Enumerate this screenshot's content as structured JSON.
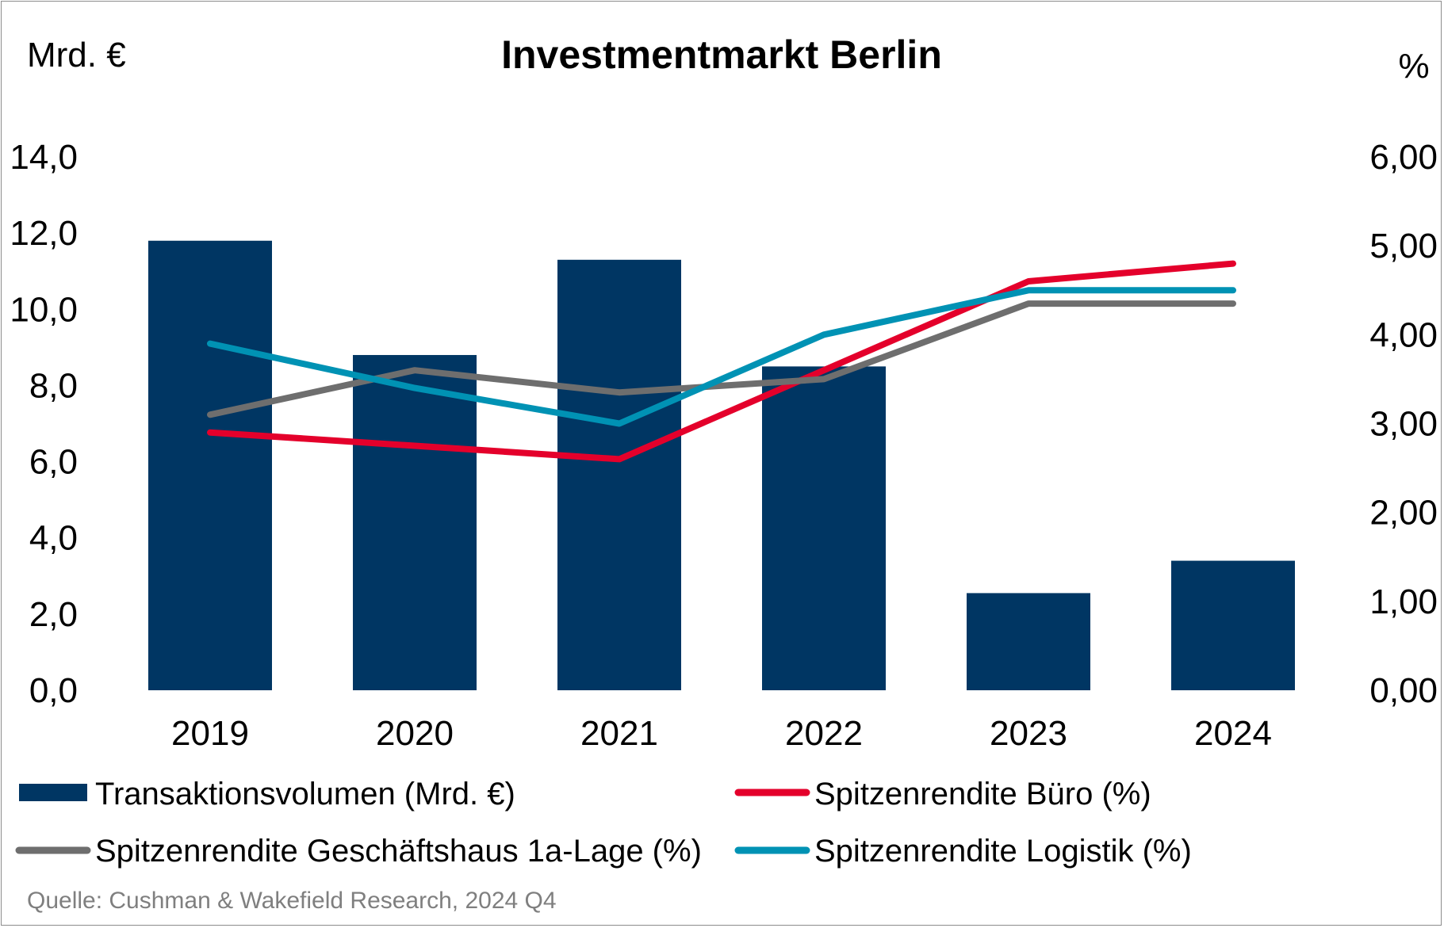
{
  "chart_data": {
    "type": "bar",
    "title": "Investmentmarkt Berlin",
    "y_left_label": "Mrd. €",
    "y_right_label": "%",
    "categories": [
      "2019",
      "2020",
      "2021",
      "2022",
      "2023",
      "2024"
    ],
    "y_left_ticks": [
      "0,0",
      "2,0",
      "4,0",
      "6,0",
      "8,0",
      "10,0",
      "12,0",
      "14,0"
    ],
    "y_right_ticks": [
      "0,00",
      "1,00",
      "2,00",
      "3,00",
      "4,00",
      "5,00",
      "6,00"
    ],
    "ylim_left": [
      0,
      14
    ],
    "ylim_right": [
      0,
      6
    ],
    "series": [
      {
        "name": "Transaktionsvolumen (Mrd. €)",
        "type": "bar",
        "axis": "left",
        "color": "#003663",
        "values": [
          11.8,
          8.8,
          11.3,
          8.5,
          2.55,
          3.4
        ]
      },
      {
        "name": "Spitzenrendite Büro (%)",
        "type": "line",
        "axis": "right",
        "color": "#e4002b",
        "values": [
          2.9,
          2.75,
          2.6,
          3.6,
          4.6,
          4.8
        ]
      },
      {
        "name": "Spitzenrendite Geschäftshaus 1a-Lage (%)",
        "type": "line",
        "axis": "right",
        "color": "#6e6e6e",
        "values": [
          3.1,
          3.6,
          3.35,
          3.5,
          4.35,
          4.35
        ]
      },
      {
        "name": "Spitzenrendite Logistik (%)",
        "type": "line",
        "axis": "right",
        "color": "#0092b4",
        "values": [
          3.9,
          3.4,
          3.0,
          4.0,
          4.5,
          4.5
        ]
      }
    ],
    "legend": "bottom",
    "grid": false,
    "source": "Quelle: Cushman & Wakefield Research, 2024 Q4"
  }
}
